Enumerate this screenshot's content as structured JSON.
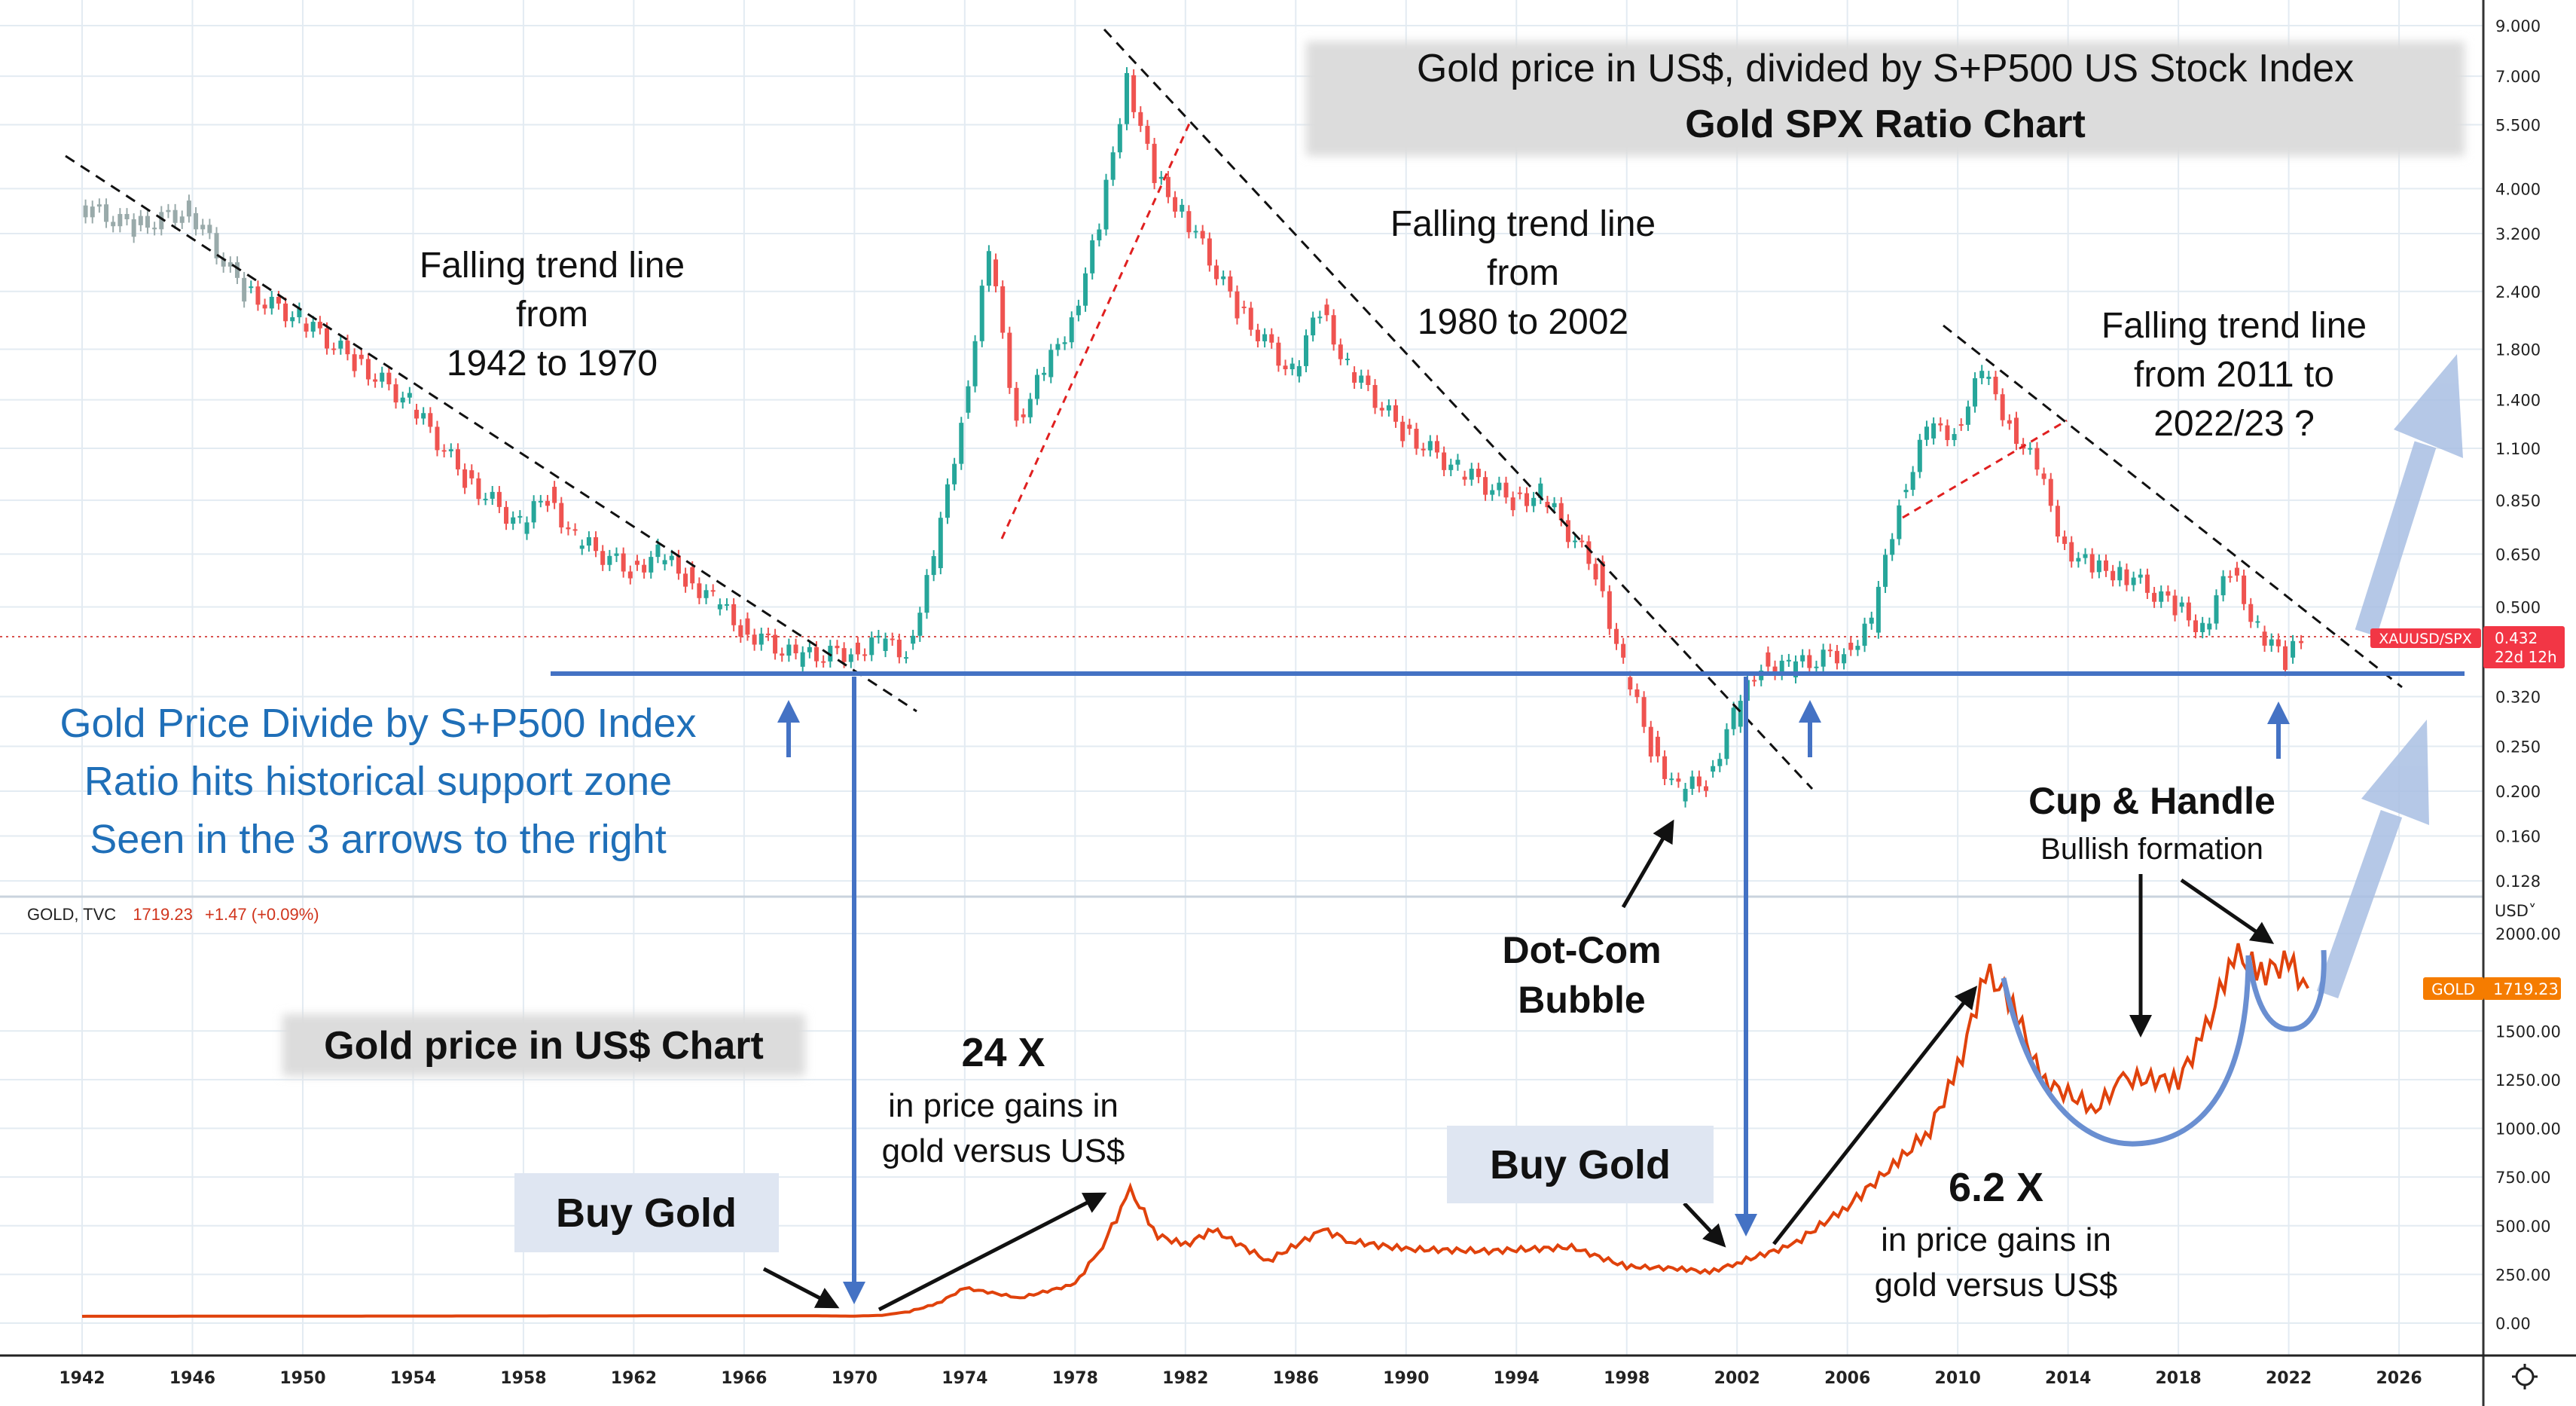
{
  "colors": {
    "up": "#26a69a",
    "down": "#ef5350",
    "gold_line": "#e0420c",
    "support": "#4472c4",
    "light_arrow": "#a9bfe3",
    "annotation_blue": "#1f6fb8",
    "badge_red": "#f23645",
    "badge_orange": "#f57c00"
  },
  "legend": {
    "symbol": "GOLD, TVC",
    "price": "1719.23",
    "change": "+1.47 (+0.09%)"
  },
  "ratio_badge": {
    "label": "XAUUSD/SPX",
    "value": "0.432",
    "countdown": "22d 12h"
  },
  "gold_badge": {
    "label": "GOLD",
    "value": "1719.23"
  },
  "currency_selector": "USD˅",
  "annotations": {
    "title_line1": "Gold price in US$, divided by S+P500 US Stock Index",
    "title_line2": "Gold SPX Ratio Chart",
    "trend1": [
      "Falling trend line",
      "from",
      "1942 to 1970"
    ],
    "trend2": [
      "Falling trend line",
      "from",
      "1980 to 2002"
    ],
    "trend3": [
      "Falling trend line",
      "from 2011 to",
      "2022/23 ?"
    ],
    "support": [
      "Gold Price Divide by S+P500 Index",
      "Ratio hits historical support zone",
      "Seen in the 3 arrows to the right"
    ],
    "cup_title": "Cup & Handle",
    "cup_sub": "Bullish formation",
    "dotcom": [
      "Dot-Com",
      "Bubble"
    ],
    "gold_chart_label": "Gold price in US$ Chart",
    "gain1_title": "24 X",
    "gain1_text": [
      "in price gains in",
      "gold versus US$"
    ],
    "gain2_title": "6.2 X",
    "gain2_text": [
      "in price gains in",
      "gold versus US$"
    ],
    "buy1": "Buy Gold",
    "buy2": "Buy Gold"
  },
  "chart_data": [
    {
      "type": "candlestick",
      "name": "XAUUSD/SPX",
      "title": "Gold SPX Ratio Chart",
      "yscale": "log",
      "ylim": [
        0.128,
        9.0
      ],
      "yticks": [
        "9.000",
        "7.000",
        "5.500",
        "4.000",
        "3.200",
        "2.400",
        "1.800",
        "1.400",
        "1.100",
        "0.850",
        "0.650",
        "0.500",
        "0.320",
        "0.250",
        "0.200",
        "0.160",
        "0.128"
      ],
      "x": [
        1942,
        1944,
        1946,
        1948,
        1950,
        1952,
        1954,
        1956,
        1958,
        1959,
        1960,
        1962,
        1963,
        1964,
        1965,
        1966,
        1968,
        1970,
        1971,
        1972,
        1973,
        1974,
        1975,
        1976,
        1977,
        1978,
        1979,
        1980,
        1981,
        1982,
        1984,
        1986,
        1987,
        1988,
        1990,
        1992,
        1994,
        1995,
        1997,
        1998,
        1999,
        2000,
        2001,
        2002,
        2003,
        2004,
        2006,
        2007,
        2008,
        2009,
        2010,
        2011,
        2012,
        2013,
        2014,
        2015,
        2016,
        2018,
        2019,
        2020,
        2021,
        2022,
        2022.6
      ],
      "values": [
        3.7,
        3.3,
        3.6,
        2.4,
        2.1,
        1.7,
        1.38,
        0.95,
        0.75,
        0.87,
        0.7,
        0.6,
        0.65,
        0.58,
        0.52,
        0.45,
        0.39,
        0.4,
        0.42,
        0.4,
        0.63,
        1.27,
        2.9,
        1.27,
        1.6,
        2.1,
        3.3,
        7.0,
        4.2,
        3.6,
        2.2,
        1.6,
        2.2,
        1.65,
        1.2,
        0.99,
        0.85,
        0.88,
        0.6,
        0.37,
        0.25,
        0.2,
        0.21,
        0.29,
        0.38,
        0.37,
        0.4,
        0.46,
        0.85,
        1.2,
        1.2,
        1.6,
        1.25,
        0.99,
        0.68,
        0.6,
        0.6,
        0.5,
        0.45,
        0.6,
        0.45,
        0.38,
        0.432
      ],
      "support_level": 0.36
    },
    {
      "type": "line",
      "name": "GOLD, TVC",
      "title": "Gold price in US$ Chart",
      "ylim": [
        0,
        2000
      ],
      "yticks": [
        "2000.00",
        "1500.00",
        "1250.00",
        "1000.00",
        "750.00",
        "500.00",
        "250.00",
        "0.00"
      ],
      "x": [
        1942,
        1968,
        1970,
        1971,
        1972,
        1973,
        1974,
        1976,
        1978,
        1979,
        1980,
        1981,
        1982,
        1983,
        1985,
        1987,
        1988,
        1990,
        1993,
        1996,
        1998,
        2000,
        2001,
        2002,
        2004,
        2006,
        2008,
        2009,
        2010,
        2011,
        2012,
        2013,
        2015,
        2016,
        2018,
        2019,
        2020,
        2021,
        2022,
        2022.7
      ],
      "values": [
        35,
        38,
        36,
        40,
        60,
        100,
        180,
        130,
        200,
        400,
        680,
        450,
        400,
        480,
        320,
        480,
        420,
        380,
        370,
        390,
        290,
        280,
        260,
        310,
        400,
        600,
        850,
        1000,
        1300,
        1800,
        1650,
        1250,
        1100,
        1250,
        1250,
        1500,
        1900,
        1800,
        1850,
        1719.23
      ]
    }
  ],
  "xaxis": {
    "ticks": [
      "1942",
      "1946",
      "1950",
      "1954",
      "1958",
      "1962",
      "1966",
      "1970",
      "1974",
      "1978",
      "1982",
      "1986",
      "1990",
      "1994",
      "1998",
      "2002",
      "2006",
      "2010",
      "2014",
      "2018",
      "2022",
      "2026"
    ]
  }
}
